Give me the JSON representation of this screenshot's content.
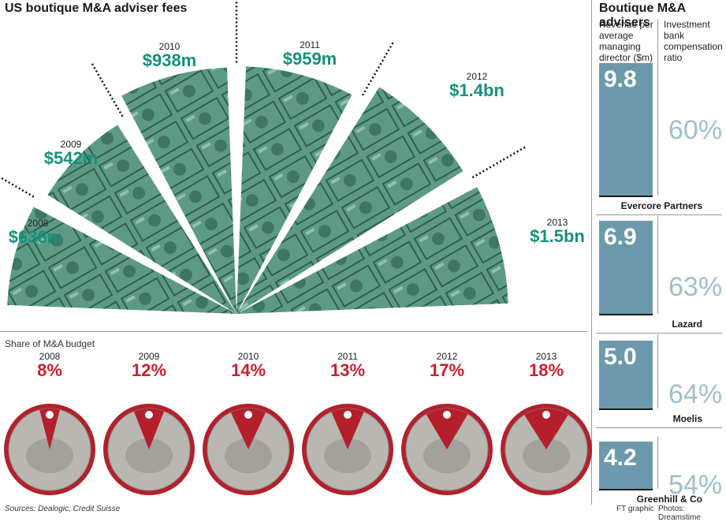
{
  "title": "US boutique M&A adviser fees",
  "fees": [
    {
      "year": "2008",
      "label": "$636m"
    },
    {
      "year": "2009",
      "label": "$542m"
    },
    {
      "year": "2010",
      "label": "$938m"
    },
    {
      "year": "2011",
      "label": "$959m"
    },
    {
      "year": "2012",
      "label": "$1.4bn"
    },
    {
      "year": "2013",
      "label": "$1.5bn"
    }
  ],
  "share_title": "Share of M&A budget",
  "shares": [
    {
      "year": "2008",
      "label": "8%"
    },
    {
      "year": "2009",
      "label": "12%"
    },
    {
      "year": "2010",
      "label": "14%"
    },
    {
      "year": "2011",
      "label": "13%"
    },
    {
      "year": "2012",
      "label": "17%"
    },
    {
      "year": "2013",
      "label": "18%"
    }
  ],
  "side": {
    "title": "Boutique M&A advisers",
    "col1": [
      "Revenue per",
      "average",
      "managing",
      "director ($m)"
    ],
    "col2": [
      "Investment",
      "bank",
      "compensation",
      "ratio"
    ],
    "rows": [
      {
        "name": "Evercore Partners",
        "value": "9.8",
        "ratio": "60%"
      },
      {
        "name": "Lazard",
        "value": "6.9",
        "ratio": "63%"
      },
      {
        "name": "Moelis",
        "value": "5.0",
        "ratio": "64%"
      },
      {
        "name": "Greenhill & Co",
        "value": "4.2",
        "ratio": "54%"
      }
    ]
  },
  "sources": "Sources: Dealogic; Credit Suisse",
  "credit_graphic": "FT graphic",
  "credit_photos": "Photos: Dreamstime",
  "chart_data": [
    {
      "type": "pie",
      "title": "US boutique M&A adviser fees",
      "categories": [
        "2008",
        "2009",
        "2010",
        "2011",
        "2012",
        "2013"
      ],
      "values": [
        636,
        542,
        938,
        959,
        1400,
        1500
      ],
      "labels": [
        "$636m",
        "$542m",
        "$938m",
        "$959m",
        "$1.4bn",
        "$1.5bn"
      ],
      "unit": "$m",
      "colors": {
        "fill": "#4f8f7a",
        "label": "#15917c"
      }
    },
    {
      "type": "pie",
      "title": "Share of M&A budget",
      "categories": [
        "2008",
        "2009",
        "2010",
        "2011",
        "2012",
        "2013"
      ],
      "values": [
        8,
        12,
        14,
        13,
        17,
        18
      ],
      "unit": "%",
      "colors": {
        "ring": "#b3202c",
        "coin": "#b9b7b2",
        "label": "#cc1f2f"
      }
    },
    {
      "type": "bar",
      "title": "Boutique M&A advisers",
      "categories": [
        "Evercore Partners",
        "Lazard",
        "Moelis",
        "Greenhill & Co"
      ],
      "series": [
        {
          "name": "Revenue per average managing director ($m)",
          "values": [
            9.8,
            6.9,
            5.0,
            4.2
          ]
        },
        {
          "name": "Investment bank compensation ratio",
          "values": [
            60,
            63,
            64,
            54
          ]
        }
      ],
      "colors": {
        "bar": "#6d99ac",
        "ratio": "#9fbfcc"
      }
    }
  ]
}
